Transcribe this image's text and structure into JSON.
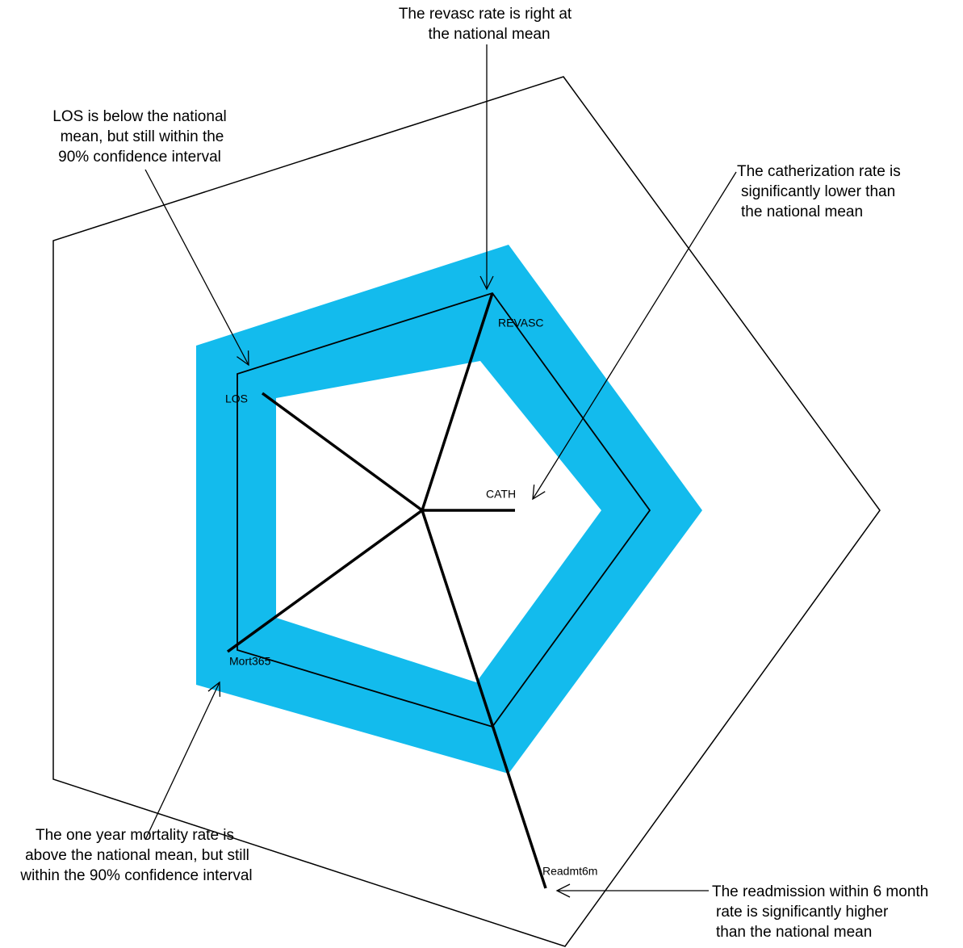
{
  "axes": [
    {
      "label": "REVASC"
    },
    {
      "label": "CATH"
    },
    {
      "label": "Readmt6m"
    },
    {
      "label": "Mort365"
    },
    {
      "label": "LOS"
    }
  ],
  "annotations": [
    {
      "lines": [
        "The revasc rate is right at",
        "the national mean"
      ]
    },
    {
      "lines": [
        "LOS is below the national",
        "mean, but still within the",
        "90% confidence interval"
      ]
    },
    {
      "lines": [
        "The catherization rate is",
        "significantly lower than",
        "the national mean"
      ]
    },
    {
      "lines": [
        "The one year mortality rate is",
        "above the national mean, but still",
        "within the 90% confidence interval"
      ]
    },
    {
      "lines": [
        "The readmission within 6 month",
        "rate is significantly higher",
        "than the national mean"
      ]
    }
  ]
}
